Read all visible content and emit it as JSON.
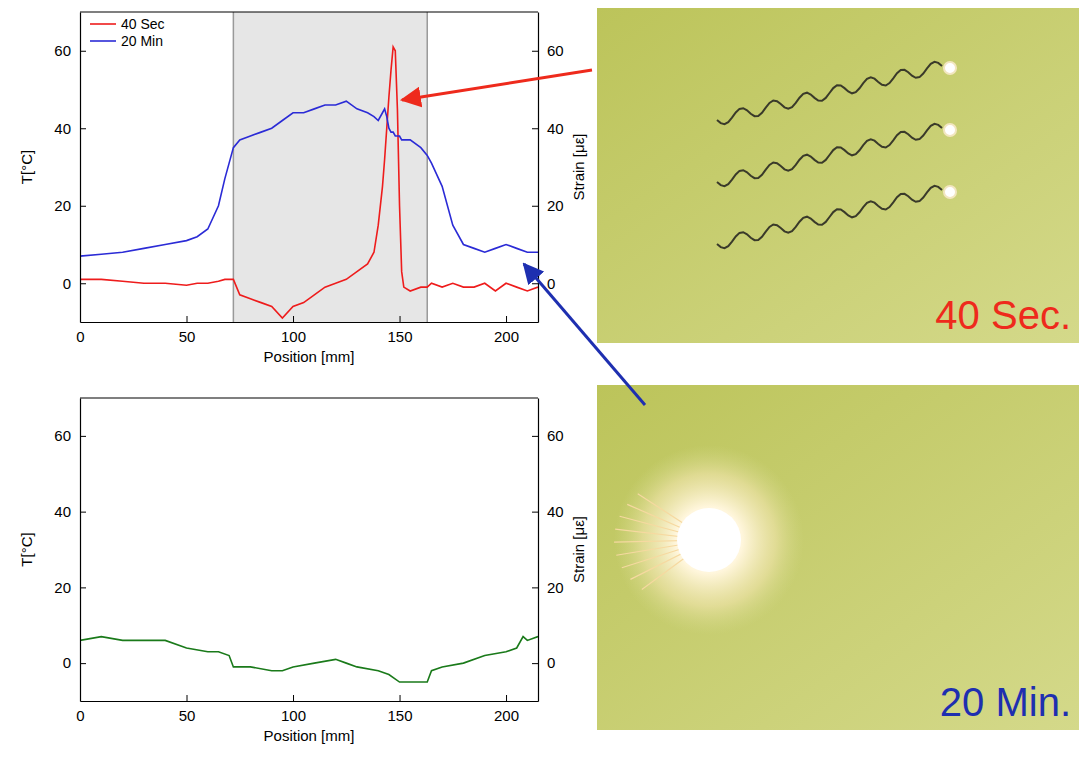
{
  "chart_data": [
    {
      "type": "line",
      "xlabel": "Position [mm]",
      "ylabel": "T[°C]",
      "y2label": "Strain [με]",
      "xlim": [
        0,
        215
      ],
      "xticks": [
        0,
        50,
        100,
        150,
        200
      ],
      "ylim": [
        -10,
        70
      ],
      "yticks": [
        0,
        20,
        40,
        60
      ],
      "y2lim": [
        -10,
        70
      ],
      "y2ticks": [
        0,
        20,
        40,
        60
      ],
      "highlight": [
        72,
        163
      ],
      "legend": "upper left",
      "x": [
        0,
        10,
        20,
        30,
        40,
        50,
        55,
        60,
        65,
        68,
        70,
        72,
        75,
        80,
        85,
        90,
        95,
        100,
        105,
        110,
        115,
        120,
        125,
        130,
        135,
        138,
        140,
        142,
        143,
        144,
        145,
        146,
        147,
        148,
        149,
        150,
        151,
        152,
        155,
        160,
        163,
        165,
        170,
        175,
        180,
        185,
        190,
        195,
        200,
        205,
        210,
        215
      ],
      "series": [
        {
          "name": "40 Sec",
          "color": "#ee1c1c",
          "values": [
            1,
            1,
            0.5,
            0,
            0,
            -0.5,
            0,
            0,
            0.5,
            1,
            1,
            1,
            -3,
            -4,
            -5,
            -6,
            -9,
            -6,
            -5,
            -3,
            -1,
            0,
            1,
            3,
            5,
            8,
            15,
            25,
            32,
            40,
            48,
            55,
            61,
            60,
            45,
            20,
            3,
            -1,
            -2,
            -1,
            -1,
            0,
            -1,
            0,
            -1,
            -1,
            0,
            -2,
            0,
            -1,
            -2,
            -1
          ]
        },
        {
          "name": "20 Min",
          "color": "#2b2bd6",
          "values": [
            7,
            7.5,
            8,
            9,
            10,
            11,
            12,
            14,
            20,
            27,
            31,
            35,
            37,
            38,
            39,
            40,
            42,
            44,
            44,
            45,
            46,
            46,
            47,
            45,
            44,
            43,
            42,
            44,
            45,
            43,
            40,
            39,
            39,
            38,
            38,
            38,
            37,
            37,
            37,
            35,
            33,
            31,
            25,
            15,
            10,
            9,
            8,
            9,
            10,
            9,
            8,
            8
          ]
        }
      ]
    },
    {
      "type": "line",
      "xlabel": "Position [mm]",
      "ylabel": "T[°C]",
      "y2label": "Strain [με]",
      "xlim": [
        0,
        215
      ],
      "xticks": [
        0,
        50,
        100,
        150,
        200
      ],
      "ylim": [
        -10,
        70
      ],
      "yticks": [
        0,
        20,
        40,
        60
      ],
      "y2lim": [
        -10,
        70
      ],
      "y2ticks": [
        0,
        20,
        40,
        60
      ],
      "x": [
        0,
        10,
        20,
        30,
        40,
        50,
        60,
        65,
        70,
        72,
        80,
        90,
        95,
        100,
        110,
        120,
        125,
        130,
        140,
        145,
        150,
        155,
        160,
        163,
        165,
        170,
        180,
        190,
        200,
        205,
        208,
        210,
        215
      ],
      "series": [
        {
          "color": "#1a7a1a",
          "values": [
            6,
            7,
            6,
            6,
            6,
            4,
            3,
            3,
            2,
            -1,
            -1,
            -2,
            -2,
            -1,
            0,
            1,
            0,
            -1,
            -2,
            -3,
            -5,
            -5,
            -5,
            -5,
            -2,
            -1,
            0,
            2,
            3,
            4,
            7,
            6,
            7
          ]
        }
      ]
    }
  ],
  "photos": [
    {
      "label": "40 Sec.",
      "color": "#ee2a1c"
    },
    {
      "label": "20 Min.",
      "color": "#1e2fb0"
    }
  ]
}
